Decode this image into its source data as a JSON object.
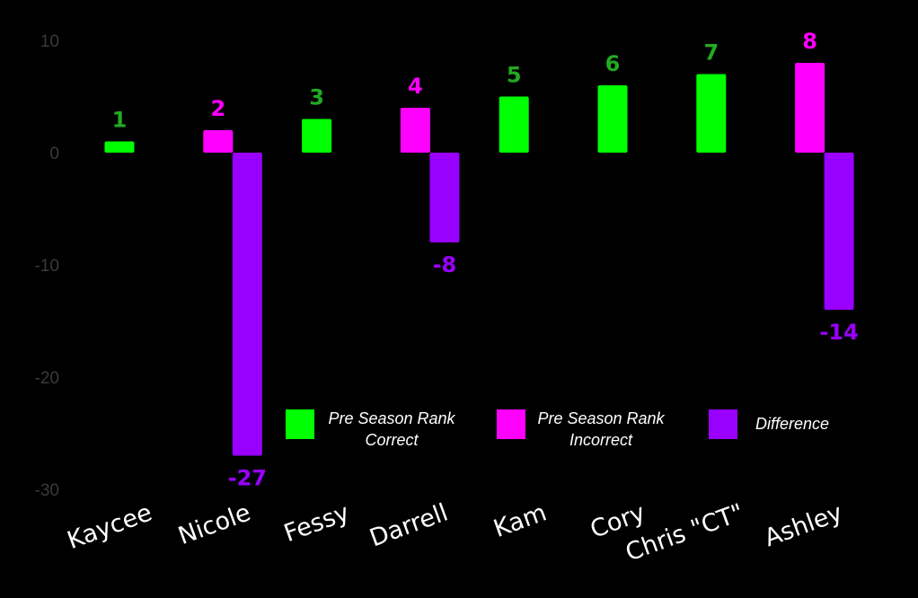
{
  "chart_data": {
    "type": "bar",
    "categories": [
      "Kaycee",
      "Nicole",
      "Fessy",
      "Darrell",
      "Kam",
      "Cory",
      "Chris \"CT\"",
      "Ashley"
    ],
    "series": [
      {
        "name": "Pre Season Rank Correct",
        "legend_lines": [
          "Pre Season Rank",
          "Correct"
        ],
        "color": "#00ff00",
        "label_color": "#22aa22",
        "values": [
          1,
          null,
          3,
          null,
          5,
          6,
          7,
          null
        ]
      },
      {
        "name": "Pre Season Rank Incorrect",
        "legend_lines": [
          "Pre Season Rank",
          "Incorrect"
        ],
        "color": "#ff00ff",
        "label_color": "#ff00ff",
        "values": [
          null,
          2,
          null,
          4,
          null,
          null,
          null,
          8
        ]
      },
      {
        "name": "Difference",
        "legend_lines": [
          "Difference"
        ],
        "color": "#9900ff",
        "label_color": "#9900ff",
        "values": [
          null,
          -27,
          null,
          -8,
          null,
          null,
          null,
          -14
        ]
      }
    ],
    "yticks": [
      "10",
      "0",
      "-10",
      "-20",
      "-30"
    ],
    "ylim": [
      -30,
      10
    ],
    "grid": false,
    "legend": "bottom-right",
    "title": "",
    "xlabel": "",
    "ylabel": ""
  }
}
